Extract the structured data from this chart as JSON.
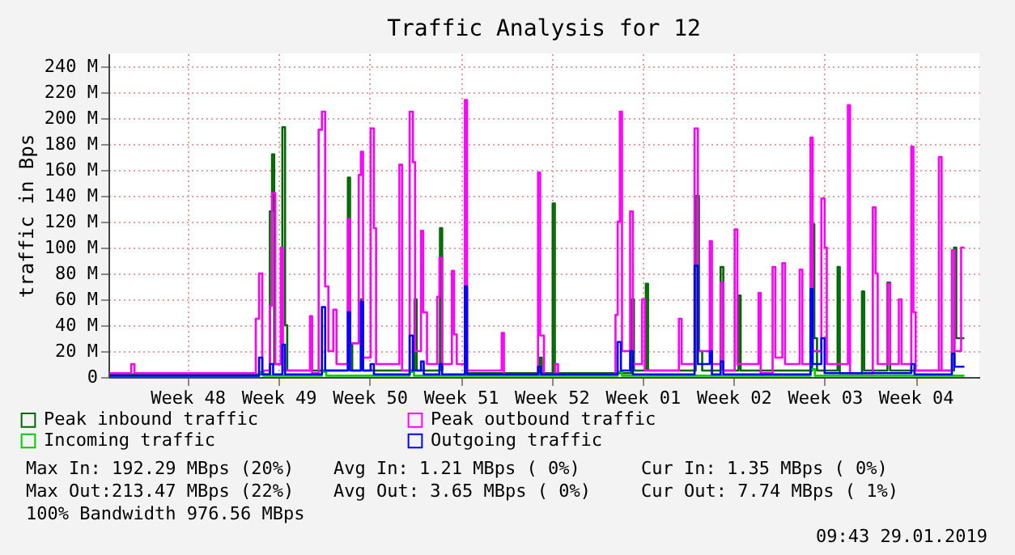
{
  "chart_data": {
    "type": "step",
    "title": "Traffic Analysis for 12",
    "ylabel": "traffic in Bps",
    "xlim": [
      "2018-11-23T10:00",
      "2019-01-29T09:43"
    ],
    "xticks": [
      {
        "value": "2018-11-29T12:00",
        "label": "Week 48"
      },
      {
        "value": "2018-12-06T12:00",
        "label": "Week 49"
      },
      {
        "value": "2018-12-13T12:00",
        "label": "Week 50"
      },
      {
        "value": "2018-12-20T12:00",
        "label": "Week 51"
      },
      {
        "value": "2018-12-27T12:00",
        "label": "Week 52"
      },
      {
        "value": "2019-01-03T12:00",
        "label": "Week 01"
      },
      {
        "value": "2019-01-10T12:00",
        "label": "Week 02"
      },
      {
        "value": "2019-01-17T12:00",
        "label": "Week 03"
      },
      {
        "value": "2019-01-24T12:00",
        "label": "Week 04"
      }
    ],
    "ylim": [
      0,
      250
    ],
    "yticks": [
      {
        "value": 0,
        "label": "0"
      },
      {
        "value": 20,
        "label": "20 M"
      },
      {
        "value": 40,
        "label": "40 M"
      },
      {
        "value": 60,
        "label": "60 M"
      },
      {
        "value": 80,
        "label": "80 M"
      },
      {
        "value": 100,
        "label": "100 M"
      },
      {
        "value": 120,
        "label": "120 M"
      },
      {
        "value": 140,
        "label": "140 M"
      },
      {
        "value": 160,
        "label": "160 M"
      },
      {
        "value": 180,
        "label": "180 M"
      },
      {
        "value": 200,
        "label": "200 M"
      },
      {
        "value": 220,
        "label": "220 M"
      },
      {
        "value": 240,
        "label": "240 M"
      }
    ],
    "grid": true,
    "legend": "bottom left",
    "line_style": "solid",
    "marker": "none",
    "series": [
      {
        "name": "Peak inbound traffic",
        "color": "#006600",
        "x": [
          "2018-11-23T12:00",
          "2018-12-05T20:00",
          "2018-12-06T00:00",
          "2018-12-06T04:00",
          "2018-12-06T19:00",
          "2018-12-07T00:00",
          "2018-12-07T04:00",
          "2018-12-11T20:00",
          "2018-12-12T00:00",
          "2018-12-12T04:00",
          "2018-12-12T20:00",
          "2018-12-13T00:00",
          "2018-12-16T23:00",
          "2018-12-17T03:00",
          "2018-12-18T22:00",
          "2018-12-19T02:00",
          "2018-12-20T20:00",
          "2018-12-21T00:00",
          "2018-12-26T14:00",
          "2018-12-26T18:00",
          "2018-12-27T14:00",
          "2018-12-27T18:00",
          "2019-01-02T15:00",
          "2019-01-02T20:00",
          "2019-01-03T18:00",
          "2019-01-03T22:00",
          "2019-01-07T14:00",
          "2019-01-07T20:00",
          "2019-01-08T02:00",
          "2019-01-09T12:00",
          "2019-01-09T17:00",
          "2019-01-10T21:00",
          "2019-01-11T01:00",
          "2019-01-16T13:00",
          "2019-01-16T17:00",
          "2019-01-16T22:00",
          "2019-01-18T12:00",
          "2019-01-18T16:00",
          "2019-01-20T09:00",
          "2019-01-20T13:00",
          "2019-01-22T08:00",
          "2019-01-22T13:00",
          "2019-01-27T11:00",
          "2019-01-27T15:00",
          "2019-01-28T06:00"
        ],
        "values": [
          2,
          128,
          172,
          10,
          193,
          40,
          5,
          154,
          25,
          5,
          60,
          5,
          60,
          5,
          115,
          5,
          null,
          3,
          15,
          3,
          134,
          3,
          60,
          5,
          72,
          5,
          140,
          20,
          5,
          85,
          5,
          63,
          5,
          118,
          30,
          5,
          85,
          3,
          66,
          5,
          73,
          5,
          100,
          30,
          30
        ]
      },
      {
        "name": "Incoming traffic",
        "color": "#00cc00",
        "x": [
          "2018-11-23T12:00",
          "2018-12-05T00:00",
          "2018-12-05T08:00",
          "2018-12-09T20:00",
          "2018-12-10T04:00",
          "2018-12-16T14:00",
          "2018-12-16T22:00",
          "2019-01-01T14:00",
          "2019-01-01T22:00",
          "2019-01-16T10:00",
          "2019-01-16T18:00",
          "2019-01-28T06:00"
        ],
        "values": [
          1,
          4,
          1,
          4,
          1,
          4,
          1,
          4,
          1,
          6,
          1,
          1
        ]
      },
      {
        "name": "Peak outbound traffic",
        "color": "#ff00ff",
        "x": [
          "2018-11-23T12:00",
          "2018-11-25T04:00",
          "2018-11-25T10:00",
          "2018-12-04T18:00",
          "2018-12-05T00:00",
          "2018-12-05T06:00",
          "2018-12-05T20:00",
          "2018-12-06T00:00",
          "2018-12-06T06:00",
          "2018-12-06T16:00",
          "2018-12-06T20:00",
          "2018-12-08T22:00",
          "2018-12-09T02:00",
          "2018-12-09T14:00",
          "2018-12-09T20:00",
          "2018-12-10T02:00",
          "2018-12-10T08:00",
          "2018-12-10T17:00",
          "2018-12-10T23:00",
          "2018-12-11T20:00",
          "2018-12-12T00:00",
          "2018-12-12T16:00",
          "2018-12-12T20:00",
          "2018-12-13T00:00",
          "2018-12-13T14:00",
          "2018-12-13T20:00",
          "2018-12-14T00:00",
          "2018-12-15T19:00",
          "2018-12-16T00:00",
          "2018-12-16T14:00",
          "2018-12-16T20:00",
          "2018-12-17T00:00",
          "2018-12-17T11:00",
          "2018-12-17T15:00",
          "2018-12-17T22:00",
          "2018-12-18T17:00",
          "2018-12-18T21:00",
          "2018-12-19T02:00",
          "2018-12-19T20:00",
          "2018-12-20T00:00",
          "2018-12-20T05:00",
          "2018-12-20T20:00",
          "2018-12-21T00:00",
          "2018-12-23T16:00",
          "2018-12-23T20:00",
          "2018-12-26T11:00",
          "2018-12-26T15:00",
          "2018-12-26T22:00",
          "2018-12-27T19:00",
          "2018-12-28T00:00",
          "2019-01-01T10:00",
          "2019-01-01T14:00",
          "2019-01-01T18:00",
          "2019-01-01T22:00",
          "2019-01-02T13:00",
          "2019-01-02T18:00",
          "2019-01-03T11:00",
          "2019-01-03T16:00",
          "2019-01-06T07:00",
          "2019-01-06T12:00",
          "2019-01-07T12:00",
          "2019-01-07T18:00",
          "2019-01-08T16:00",
          "2019-01-08T20:00",
          "2019-01-09T12:00",
          "2019-01-09T17:00",
          "2019-01-10T14:00",
          "2019-01-10T19:00",
          "2019-01-12T10:00",
          "2019-01-12T14:00",
          "2019-01-13T12:00",
          "2019-01-13T17:00",
          "2019-01-14T06:00",
          "2019-01-14T11:00",
          "2019-01-15T14:00",
          "2019-01-15T19:00",
          "2019-01-16T10:00",
          "2019-01-16T14:00",
          "2019-01-17T06:00",
          "2019-01-17T12:00",
          "2019-01-17T16:00",
          "2019-01-19T07:00",
          "2019-01-19T11:00",
          "2019-01-21T05:00",
          "2019-01-21T10:00",
          "2019-01-21T14:00",
          "2019-01-22T08:00",
          "2019-01-22T13:00",
          "2019-01-23T05:00",
          "2019-01-23T10:00",
          "2019-01-24T04:00",
          "2019-01-24T08:00",
          "2019-01-24T12:00",
          "2019-01-26T07:00",
          "2019-01-26T12:00",
          "2019-01-27T07:00",
          "2019-01-27T12:00",
          "2019-01-28T00:00",
          "2019-01-28T06:00"
        ],
        "values": [
          3,
          10,
          3,
          45,
          80,
          5,
          55,
          142,
          10,
          100,
          5,
          47,
          3,
          191,
          205,
          70,
          20,
          52,
          10,
          122,
          26,
          156,
          174,
          15,
          192,
          115,
          10,
          164,
          5,
          205,
          166,
          20,
          113,
          50,
          10,
          62,
          92,
          10,
          82,
          33,
          10,
          214,
          5,
          34,
          2,
          158,
          32,
          2,
          10,
          2,
          48,
          120,
          205,
          20,
          128,
          10,
          60,
          5,
          45,
          10,
          192,
          20,
          105,
          10,
          73,
          5,
          114,
          10,
          65,
          3,
          85,
          15,
          88,
          10,
          83,
          10,
          185,
          20,
          138,
          100,
          10,
          210,
          3,
          131,
          80,
          10,
          72,
          10,
          60,
          10,
          178,
          50,
          5,
          170,
          5,
          98,
          20,
          100,
          100
        ]
      },
      {
        "name": "Outgoing traffic",
        "color": "#0000ff",
        "x": [
          "2018-11-23T12:00",
          "2018-12-05T00:00",
          "2018-12-05T06:00",
          "2018-12-05T20:00",
          "2018-12-06T02:00",
          "2018-12-06T19:00",
          "2018-12-07T00:00",
          "2018-12-09T20:00",
          "2018-12-10T02:00",
          "2018-12-11T20:00",
          "2018-12-12T00:00",
          "2018-12-12T20:00",
          "2018-12-13T00:00",
          "2018-12-13T14:00",
          "2018-12-13T20:00",
          "2018-12-16T14:00",
          "2018-12-16T20:00",
          "2018-12-17T11:00",
          "2018-12-17T16:00",
          "2018-12-18T21:00",
          "2018-12-19T02:00",
          "2018-12-20T20:00",
          "2018-12-21T00:00",
          "2018-12-26T11:00",
          "2018-12-26T16:00",
          "2019-01-01T14:00",
          "2019-01-01T20:00",
          "2019-01-02T13:00",
          "2019-01-02T18:00",
          "2019-01-07T12:00",
          "2019-01-07T18:00",
          "2019-01-08T16:00",
          "2019-01-08T20:00",
          "2019-01-09T12:00",
          "2019-01-09T17:00",
          "2019-01-16T10:00",
          "2019-01-16T14:00",
          "2019-01-17T06:00",
          "2019-01-17T12:00",
          "2019-01-24T04:00",
          "2019-01-24T10:00",
          "2019-01-27T07:00",
          "2019-01-27T12:00",
          "2019-01-28T06:00"
        ],
        "values": [
          1,
          15,
          2,
          10,
          2,
          25,
          2,
          54,
          5,
          50,
          5,
          58,
          5,
          10,
          2,
          32,
          5,
          12,
          2,
          10,
          2,
          70,
          2,
          8,
          2,
          27,
          5,
          20,
          2,
          86,
          10,
          20,
          2,
          12,
          2,
          68,
          10,
          30,
          3,
          10,
          2,
          18,
          8,
          8
        ]
      }
    ],
    "annotations": [
      "Max In: 192.29 MBps (20%)",
      "Avg In:   1.21 MBps ( 0%)",
      "Cur In:   1.35 MBps ( 0%)",
      "Max Out:213.47 MBps (22%)",
      "Avg Out:  3.65 MBps ( 0%)",
      "Cur Out:  7.74 MBps ( 1%)",
      "100% Bandwidth 976.56 MBps",
      "09:43 29.01.2019"
    ]
  }
}
